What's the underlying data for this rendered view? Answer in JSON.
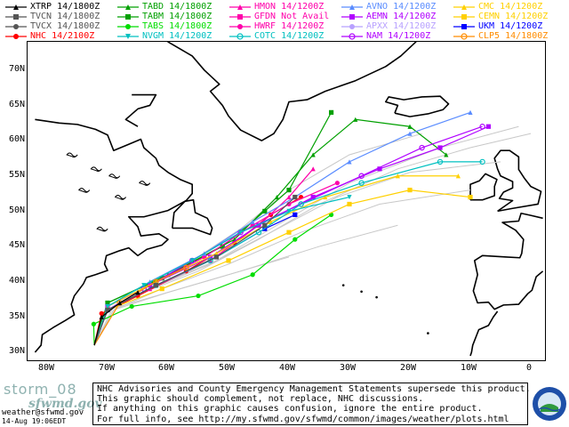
{
  "legend": [
    {
      "label": "XTRP 14/1800Z",
      "color": "#000000",
      "marker": "triangle-up"
    },
    {
      "label": "TVCN 14/1800Z",
      "color": "#555555",
      "marker": "square"
    },
    {
      "label": "TVCX 14/1800Z",
      "color": "#555555",
      "marker": "circle"
    },
    {
      "label": "NHC 14/2100Z",
      "color": "#ff0000",
      "marker": "circle"
    },
    {
      "label": "TABD 14/1800Z",
      "color": "#00a000",
      "marker": "triangle-up"
    },
    {
      "label": "TABM 14/1800Z",
      "color": "#00a000",
      "marker": "square"
    },
    {
      "label": "TABS 14/1800Z",
      "color": "#00dd00",
      "marker": "circle"
    },
    {
      "label": "NVGM 14/1200Z",
      "color": "#00c0c0",
      "marker": "triangle-down"
    },
    {
      "label": "HMON 14/1200Z",
      "color": "#ff00aa",
      "marker": "triangle-up"
    },
    {
      "label": "GFDN Not Avail",
      "color": "#ff00aa",
      "marker": "square"
    },
    {
      "label": "HWRF 14/1200Z",
      "color": "#ff00aa",
      "marker": "circle"
    },
    {
      "label": "COTC 14/1200Z",
      "color": "#00c0c0",
      "marker": "circle-open"
    },
    {
      "label": "AVNO 14/1200Z",
      "color": "#5a8cff",
      "marker": "triangle-up"
    },
    {
      "label": "AEMN 14/1200Z",
      "color": "#b000ff",
      "marker": "square"
    },
    {
      "label": "APXX 14/1200Z",
      "color": "#b8a0ff",
      "marker": "circle"
    },
    {
      "label": "NAM 14/1200Z",
      "color": "#b000ff",
      "marker": "circle-open"
    },
    {
      "label": "CMC 14/1200Z",
      "color": "#ffd000",
      "marker": "triangle-up"
    },
    {
      "label": "CEMN 14/1200Z",
      "color": "#ffd000",
      "marker": "square"
    },
    {
      "label": "UKM 14/1200Z",
      "color": "#0000ff",
      "marker": "square"
    },
    {
      "label": "CLP5 14/1800Z",
      "color": "#ff8c00",
      "marker": "circle-open"
    }
  ],
  "axes": {
    "lat_labels": [
      "70N",
      "65N",
      "60N",
      "55N",
      "50N",
      "45N",
      "40N",
      "35N",
      "30N"
    ],
    "lon_labels": [
      "80W",
      "70W",
      "60W",
      "50W",
      "40W",
      "30W",
      "20W",
      "10W",
      "0"
    ]
  },
  "colors": {
    "coast": "#000000",
    "grey_tracks": "#c8c8c8",
    "footer_accent": "#8fb2b0"
  },
  "footer": {
    "storm": "storm_08",
    "logo_text": "sfwmd.gov",
    "email": "weather@sfwmd.gov",
    "date": "14-Aug 19:06EDT",
    "disclaimer": [
      "NHC Advisories and County Emergency Management Statements supersede this product.",
      "This graphic should complement, not replace, NHC discussions.",
      "If anything on this graphic causes confusion, ignore the entire product.",
      "For full info, see  http://my.sfwmd.gov/sfwmd/common/images/weather/plots.html"
    ]
  }
}
